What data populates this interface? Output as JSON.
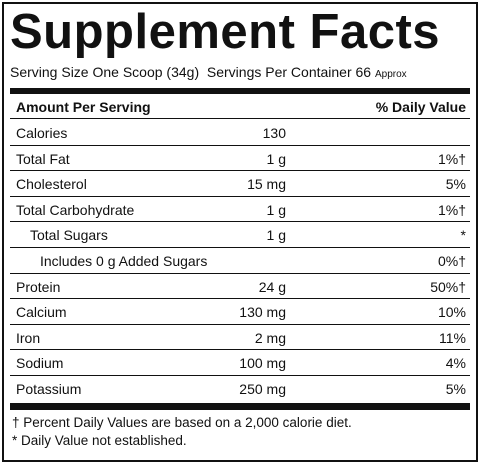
{
  "header": {
    "title": "Supplement Facts",
    "serving_size": "Serving Size One Scoop (34g)",
    "servings": "Servings Per Container 66",
    "approx": "Approx"
  },
  "table": {
    "columns": [
      "Amount Per Serving",
      "% Daily Value"
    ],
    "rows": [
      {
        "name": "Calories",
        "amount": "130"
      },
      {
        "name": "Total Fat",
        "amount": "1 g",
        "dv": "1%†"
      },
      {
        "name": "Cholesterol",
        "amount": "15 mg",
        "dv": "5%"
      },
      {
        "name": "Total Carbohydrate",
        "amount": "1 g",
        "dv": "1%†"
      },
      {
        "name": "Total Sugars",
        "amount": "1 g",
        "dv": "*"
      },
      {
        "name": "Includes 0 g Added Sugars",
        "dv": "0%†"
      },
      {
        "name": "Protein",
        "amount": "24 g",
        "dv": "50%†"
      },
      {
        "name": "Calcium",
        "amount": "130 mg",
        "dv": "10%"
      },
      {
        "name": "Iron",
        "amount": "2 mg",
        "dv": "11%"
      },
      {
        "name": "Sodium",
        "amount": "100 mg",
        "dv": "4%"
      },
      {
        "name": "Potassium",
        "amount": "250 mg",
        "dv": "5%"
      }
    ]
  },
  "footnotes": [
    "† Percent Daily Values are based on a 2,000 calorie diet.",
    "* Daily Value not established."
  ]
}
